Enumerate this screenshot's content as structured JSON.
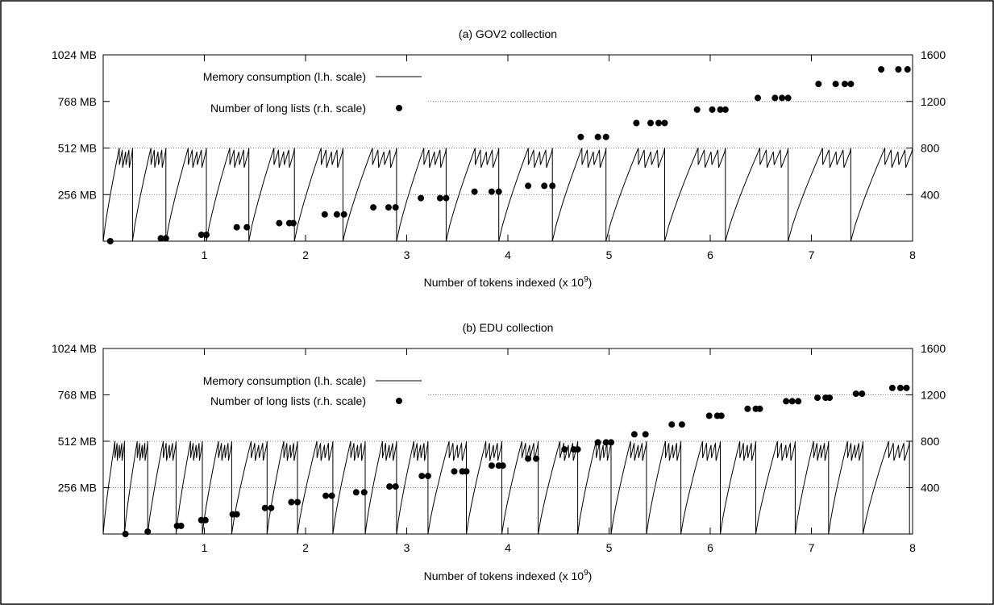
{
  "chart_data": [
    {
      "type": "line",
      "title": "(a) GOV2 collection",
      "xlabel": "Number of tokens indexed (x 10",
      "xlabel_exponent": "9",
      "xlabel_suffix": ")",
      "xlim": [
        0,
        8
      ],
      "x_ticks": [
        "1",
        "2",
        "3",
        "4",
        "5",
        "6",
        "7",
        "8"
      ],
      "y_left_ticks": [
        "256 MB",
        "512 MB",
        "768 MB",
        "1024 MB"
      ],
      "y_left_ticks_values": [
        256,
        512,
        768,
        1024
      ],
      "y_left_lim": [
        0,
        1024
      ],
      "y_right_ticks": [
        "400",
        "800",
        "1200",
        "1600"
      ],
      "y_right_lim": [
        0,
        1600
      ],
      "grid": "horizontal dotted",
      "legend_position": "upper-left",
      "series": [
        {
          "name": "Memory consumption (l.h. scale)",
          "axis": "left",
          "style": "line",
          "cycles_x": [
            0,
            0.29,
            0.62,
            1.02,
            1.44,
            1.89,
            2.37,
            2.9,
            3.39,
            3.91,
            4.44,
            4.97,
            5.55,
            6.15,
            6.77,
            7.39,
            8.0
          ],
          "peak_mb": 512
        },
        {
          "name": "Number of long lists (r.h. scale)",
          "axis": "right",
          "style": "points",
          "points": [
            [
              0.07,
              0
            ],
            [
              0.57,
              25
            ],
            [
              0.62,
              25
            ],
            [
              0.97,
              55
            ],
            [
              1.02,
              55
            ],
            [
              1.32,
              120
            ],
            [
              1.42,
              120
            ],
            [
              1.74,
              155
            ],
            [
              1.84,
              155
            ],
            [
              1.88,
              155
            ],
            [
              2.19,
              230
            ],
            [
              2.31,
              230
            ],
            [
              2.38,
              230
            ],
            [
              2.67,
              290
            ],
            [
              2.82,
              290
            ],
            [
              2.89,
              290
            ],
            [
              3.14,
              370
            ],
            [
              3.33,
              370
            ],
            [
              3.39,
              370
            ],
            [
              3.67,
              425
            ],
            [
              3.84,
              425
            ],
            [
              3.91,
              425
            ],
            [
              4.2,
              475
            ],
            [
              4.36,
              475
            ],
            [
              4.44,
              475
            ],
            [
              4.72,
              895
            ],
            [
              4.89,
              895
            ],
            [
              4.97,
              895
            ],
            [
              5.27,
              1015
            ],
            [
              5.41,
              1015
            ],
            [
              5.49,
              1015
            ],
            [
              5.55,
              1015
            ],
            [
              5.87,
              1130
            ],
            [
              6.02,
              1130
            ],
            [
              6.1,
              1130
            ],
            [
              6.15,
              1130
            ],
            [
              6.47,
              1230
            ],
            [
              6.64,
              1230
            ],
            [
              6.71,
              1230
            ],
            [
              6.77,
              1230
            ],
            [
              7.07,
              1350
            ],
            [
              7.24,
              1350
            ],
            [
              7.33,
              1350
            ],
            [
              7.39,
              1350
            ],
            [
              7.69,
              1475
            ],
            [
              7.86,
              1475
            ],
            [
              7.95,
              1475
            ]
          ]
        }
      ]
    },
    {
      "type": "line",
      "title": "(b) EDU collection",
      "xlabel": "Number of tokens indexed (x 10",
      "xlabel_exponent": "9",
      "xlabel_suffix": ")",
      "xlim": [
        0,
        8
      ],
      "x_ticks": [
        "1",
        "2",
        "3",
        "4",
        "5",
        "6",
        "7",
        "8"
      ],
      "y_left_ticks": [
        "256 MB",
        "512 MB",
        "768 MB",
        "1024 MB"
      ],
      "y_left_ticks_values": [
        256,
        512,
        768,
        1024
      ],
      "y_left_lim": [
        0,
        1024
      ],
      "y_right_ticks": [
        "400",
        "800",
        "1200",
        "1600"
      ],
      "y_right_lim": [
        0,
        1600
      ],
      "grid": "horizontal dotted",
      "legend_position": "upper-left",
      "series": [
        {
          "name": "Memory consumption (l.h. scale)",
          "axis": "left",
          "style": "line",
          "cycles_x": [
            0,
            0.21,
            0.44,
            0.72,
            0.98,
            1.27,
            1.62,
            1.92,
            2.27,
            2.59,
            2.9,
            3.21,
            3.59,
            3.94,
            4.3,
            4.69,
            5.02,
            5.37,
            5.71,
            6.1,
            6.45,
            6.84,
            7.17,
            7.51,
            7.97
          ],
          "peak_mb": 512
        },
        {
          "name": "Number of long lists (r.h. scale)",
          "axis": "right",
          "style": "points",
          "points": [
            [
              0.22,
              0
            ],
            [
              0.44,
              20
            ],
            [
              0.73,
              70
            ],
            [
              0.77,
              70
            ],
            [
              0.97,
              120
            ],
            [
              1.01,
              120
            ],
            [
              1.28,
              170
            ],
            [
              1.32,
              170
            ],
            [
              1.6,
              225
            ],
            [
              1.66,
              225
            ],
            [
              1.86,
              275
            ],
            [
              1.92,
              275
            ],
            [
              2.2,
              330
            ],
            [
              2.26,
              330
            ],
            [
              2.5,
              360
            ],
            [
              2.58,
              360
            ],
            [
              2.83,
              410
            ],
            [
              2.89,
              410
            ],
            [
              3.15,
              500
            ],
            [
              3.21,
              500
            ],
            [
              3.47,
              540
            ],
            [
              3.55,
              540
            ],
            [
              3.59,
              540
            ],
            [
              3.84,
              590
            ],
            [
              3.91,
              590
            ],
            [
              3.95,
              590
            ],
            [
              4.2,
              650
            ],
            [
              4.28,
              650
            ],
            [
              4.56,
              730
            ],
            [
              4.65,
              730
            ],
            [
              4.69,
              730
            ],
            [
              4.89,
              790
            ],
            [
              4.97,
              790
            ],
            [
              5.02,
              790
            ],
            [
              5.25,
              860
            ],
            [
              5.36,
              860
            ],
            [
              5.62,
              945
            ],
            [
              5.72,
              945
            ],
            [
              5.99,
              1020
            ],
            [
              6.07,
              1020
            ],
            [
              6.11,
              1020
            ],
            [
              6.37,
              1080
            ],
            [
              6.45,
              1080
            ],
            [
              6.49,
              1080
            ],
            [
              6.75,
              1145
            ],
            [
              6.81,
              1145
            ],
            [
              6.87,
              1145
            ],
            [
              7.06,
              1175
            ],
            [
              7.14,
              1175
            ],
            [
              7.18,
              1175
            ],
            [
              7.44,
              1210
            ],
            [
              7.5,
              1210
            ],
            [
              7.8,
              1260
            ],
            [
              7.88,
              1260
            ],
            [
              7.94,
              1260
            ]
          ]
        }
      ]
    }
  ]
}
